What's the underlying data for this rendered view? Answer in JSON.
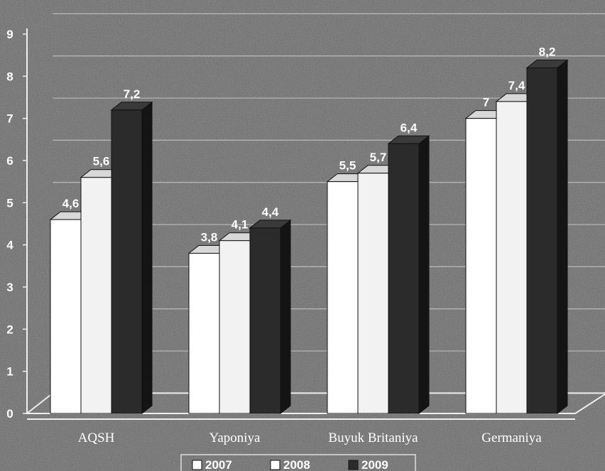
{
  "chart_data": {
    "type": "bar",
    "title": "",
    "xlabel": "",
    "ylabel": "",
    "categories": [
      "AQSH",
      "Yaponiya",
      "Buyuk Britaniya",
      "Germaniya"
    ],
    "series": [
      {
        "name": "2007",
        "values": [
          4.6,
          3.8,
          5.5,
          7.0
        ],
        "labels": [
          "4,6",
          "3,8",
          "5,5",
          "7"
        ]
      },
      {
        "name": "2008",
        "values": [
          5.6,
          4.1,
          5.7,
          7.4
        ],
        "labels": [
          "5,6",
          "4,1",
          "5,7",
          "7,4"
        ]
      },
      {
        "name": "2009",
        "values": [
          7.2,
          4.4,
          6.4,
          8.2
        ],
        "labels": [
          "7,2",
          "4,4",
          "6,4",
          "8,2"
        ]
      }
    ],
    "ylim": [
      0,
      9
    ],
    "yticks": [
      "0",
      "1",
      "2",
      "3",
      "4",
      "5",
      "6",
      "7",
      "8",
      "9"
    ],
    "grid": true,
    "legend_position": "bottom",
    "style": "3d",
    "colors": {
      "2007": "#ffffff",
      "2008": "#f2f2f2",
      "2009": "#2b2b2b",
      "background": "#6e6e6e",
      "grid": "#d0d0d0",
      "text": "#ffffff"
    }
  }
}
